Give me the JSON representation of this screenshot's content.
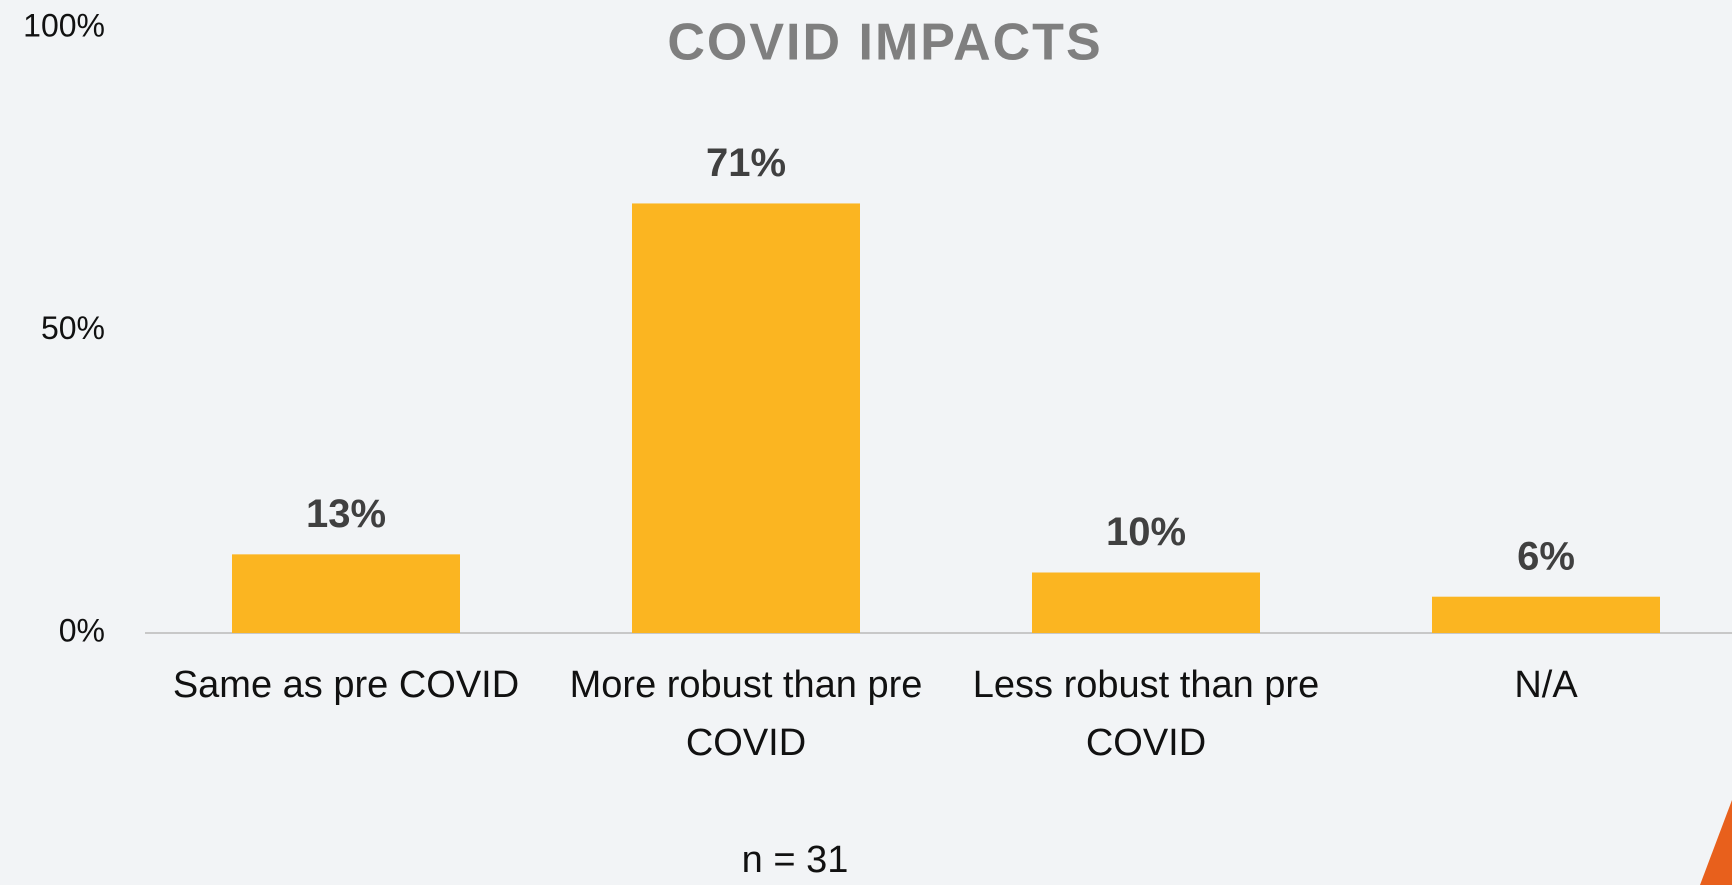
{
  "chart_data": {
    "type": "bar",
    "title": "COVID IMPACTS",
    "categories": [
      "Same as pre COVID",
      "More robust than pre COVID",
      "Less robust than pre COVID",
      "N/A"
    ],
    "values": [
      13,
      71,
      10,
      6
    ],
    "value_labels": [
      "13%",
      "71%",
      "10%",
      "6%"
    ],
    "color": "#fbb521",
    "ylim": [
      0,
      100
    ],
    "yticks": [
      {
        "value": 0,
        "label": "0%"
      },
      {
        "value": 50,
        "label": "50%"
      },
      {
        "value": 100,
        "label": "100%"
      }
    ],
    "grid": false,
    "annotation": "n = 31"
  }
}
